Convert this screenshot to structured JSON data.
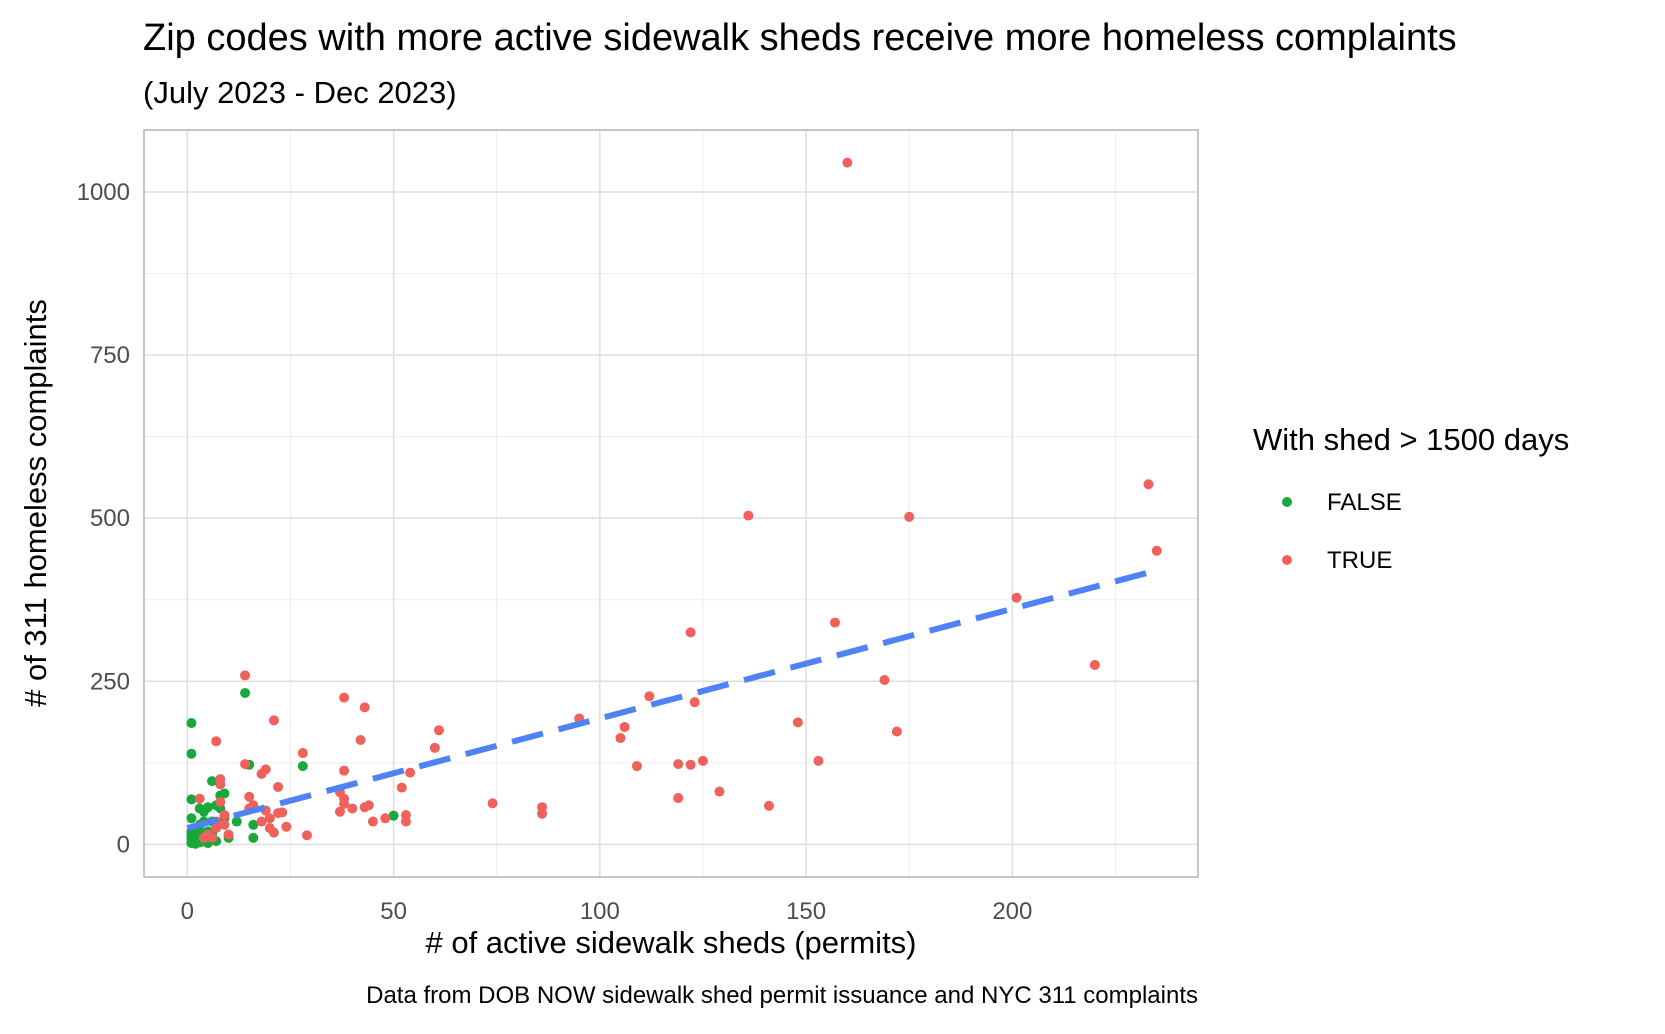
{
  "chart_data": {
    "type": "scatter",
    "title": "Zip codes with more active sidewalk sheds receive more homeless complaints",
    "subtitle": "(July 2023 - Dec 2023)",
    "xlabel": "# of active sidewalk sheds (permits)",
    "ylabel": "# of 311 homeless complaints",
    "caption": "Data from DOB NOW sidewalk shed permit issuance and NYC 311 complaints",
    "legend_title": "With shed > 1500 days",
    "legend_position": "right",
    "grid": true,
    "xlim": [
      -10.5,
      245
    ],
    "ylim": [
      -50,
      1095
    ],
    "x_ticks": [
      0,
      50,
      100,
      150,
      200
    ],
    "y_ticks": [
      0,
      250,
      500,
      750,
      1000
    ],
    "x_tick_labels": [
      "0",
      "50",
      "100",
      "150",
      "200"
    ],
    "y_tick_labels": [
      "0",
      "250",
      "500",
      "750",
      "1000"
    ],
    "trend_line": {
      "style": "dashed",
      "color": "#4f81f7",
      "x": [
        0,
        235
      ],
      "y": [
        25,
        420
      ]
    },
    "series": [
      {
        "name": "FALSE",
        "color": "#19a83a",
        "points": [
          [
            1,
            186
          ],
          [
            1,
            139
          ],
          [
            1,
            69
          ],
          [
            1,
            40
          ],
          [
            1,
            20
          ],
          [
            1,
            15
          ],
          [
            1,
            10
          ],
          [
            1,
            5
          ],
          [
            1,
            2
          ],
          [
            2,
            25
          ],
          [
            2,
            10
          ],
          [
            2,
            5
          ],
          [
            2,
            1
          ],
          [
            3,
            55
          ],
          [
            3,
            30
          ],
          [
            3,
            20
          ],
          [
            3,
            8
          ],
          [
            3,
            3
          ],
          [
            4,
            50
          ],
          [
            4,
            35
          ],
          [
            4,
            15
          ],
          [
            4,
            5
          ],
          [
            5,
            57
          ],
          [
            5,
            20
          ],
          [
            5,
            10
          ],
          [
            5,
            2
          ],
          [
            6,
            97
          ],
          [
            6,
            35
          ],
          [
            6,
            15
          ],
          [
            7,
            60
          ],
          [
            7,
            5
          ],
          [
            8,
            75
          ],
          [
            8,
            55
          ],
          [
            9,
            78
          ],
          [
            9,
            40
          ],
          [
            10,
            15
          ],
          [
            10,
            10
          ],
          [
            12,
            35
          ],
          [
            14,
            232
          ],
          [
            15,
            122
          ],
          [
            16,
            30
          ],
          [
            16,
            10
          ],
          [
            28,
            120
          ],
          [
            50,
            44
          ]
        ]
      },
      {
        "name": "TRUE",
        "color": "#ef615a",
        "points": [
          [
            3,
            70
          ],
          [
            4,
            10
          ],
          [
            5,
            15
          ],
          [
            6,
            10
          ],
          [
            7,
            158
          ],
          [
            7,
            35
          ],
          [
            7,
            25
          ],
          [
            8,
            100
          ],
          [
            8,
            92
          ],
          [
            8,
            65
          ],
          [
            9,
            45
          ],
          [
            9,
            30
          ],
          [
            10,
            15
          ],
          [
            14,
            259
          ],
          [
            14,
            123
          ],
          [
            15,
            73
          ],
          [
            15,
            55
          ],
          [
            16,
            60
          ],
          [
            18,
            108
          ],
          [
            18,
            35
          ],
          [
            19,
            115
          ],
          [
            19,
            52
          ],
          [
            20,
            40
          ],
          [
            20,
            25
          ],
          [
            21,
            190
          ],
          [
            21,
            18
          ],
          [
            22,
            88
          ],
          [
            22,
            48
          ],
          [
            23,
            49
          ],
          [
            24,
            27
          ],
          [
            28,
            140
          ],
          [
            29,
            14
          ],
          [
            37,
            80
          ],
          [
            37,
            50
          ],
          [
            38,
            225
          ],
          [
            38,
            113
          ],
          [
            38,
            70
          ],
          [
            38,
            62
          ],
          [
            40,
            55
          ],
          [
            42,
            160
          ],
          [
            43,
            210
          ],
          [
            43,
            57
          ],
          [
            44,
            60
          ],
          [
            45,
            35
          ],
          [
            48,
            40
          ],
          [
            52,
            87
          ],
          [
            53,
            45
          ],
          [
            53,
            35
          ],
          [
            54,
            110
          ],
          [
            60,
            148
          ],
          [
            61,
            175
          ],
          [
            74,
            63
          ],
          [
            86,
            57
          ],
          [
            86,
            47
          ],
          [
            95,
            193
          ],
          [
            105,
            163
          ],
          [
            106,
            180
          ],
          [
            109,
            120
          ],
          [
            112,
            227
          ],
          [
            119,
            123
          ],
          [
            119,
            71
          ],
          [
            122,
            325
          ],
          [
            122,
            122
          ],
          [
            123,
            218
          ],
          [
            125,
            128
          ],
          [
            129,
            81
          ],
          [
            136,
            504
          ],
          [
            141,
            59
          ],
          [
            148,
            187
          ],
          [
            153,
            128
          ],
          [
            157,
            340
          ],
          [
            160,
            1045
          ],
          [
            169,
            252
          ],
          [
            172,
            173
          ],
          [
            175,
            502
          ],
          [
            201,
            378
          ],
          [
            220,
            275
          ],
          [
            233,
            552
          ],
          [
            235,
            450
          ]
        ]
      }
    ]
  }
}
